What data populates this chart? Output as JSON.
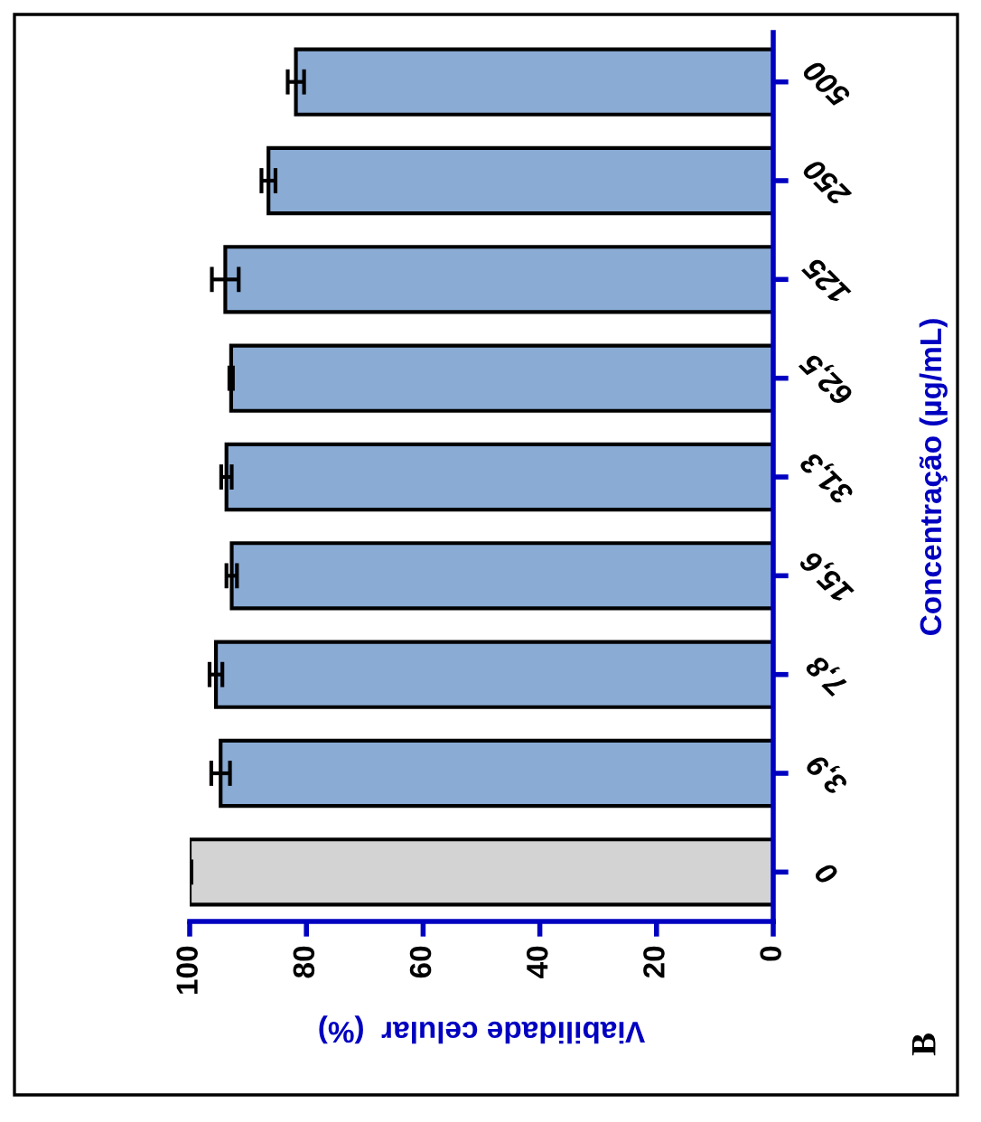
{
  "chart_data": {
    "type": "bar",
    "orientation": "horizontal",
    "categories": [
      "500",
      "250",
      "125",
      "62,5",
      "31,3",
      "15,6",
      "7,8",
      "3,9",
      "0"
    ],
    "values": [
      81.8,
      86.5,
      93.9,
      92.9,
      93.7,
      92.8,
      95.5,
      94.7,
      100
    ],
    "errors": [
      1.4,
      1.2,
      2.3,
      0.3,
      0.9,
      0.9,
      1.1,
      1.6,
      0.3
    ],
    "colors": [
      "#8aabd4",
      "#8aabd4",
      "#8aabd4",
      "#8aabd4",
      "#8aabd4",
      "#8aabd4",
      "#8aabd4",
      "#8aabd4",
      "#d3d3d3"
    ],
    "xlim": [
      100,
      0
    ],
    "xticks": [
      0,
      20,
      40,
      60,
      80,
      100
    ],
    "xlabel": "Viabilidade celular  (%)",
    "ylabel": "Concentração (µg/mL)",
    "annotations": [
      "B"
    ],
    "grid": false,
    "legend": false
  }
}
